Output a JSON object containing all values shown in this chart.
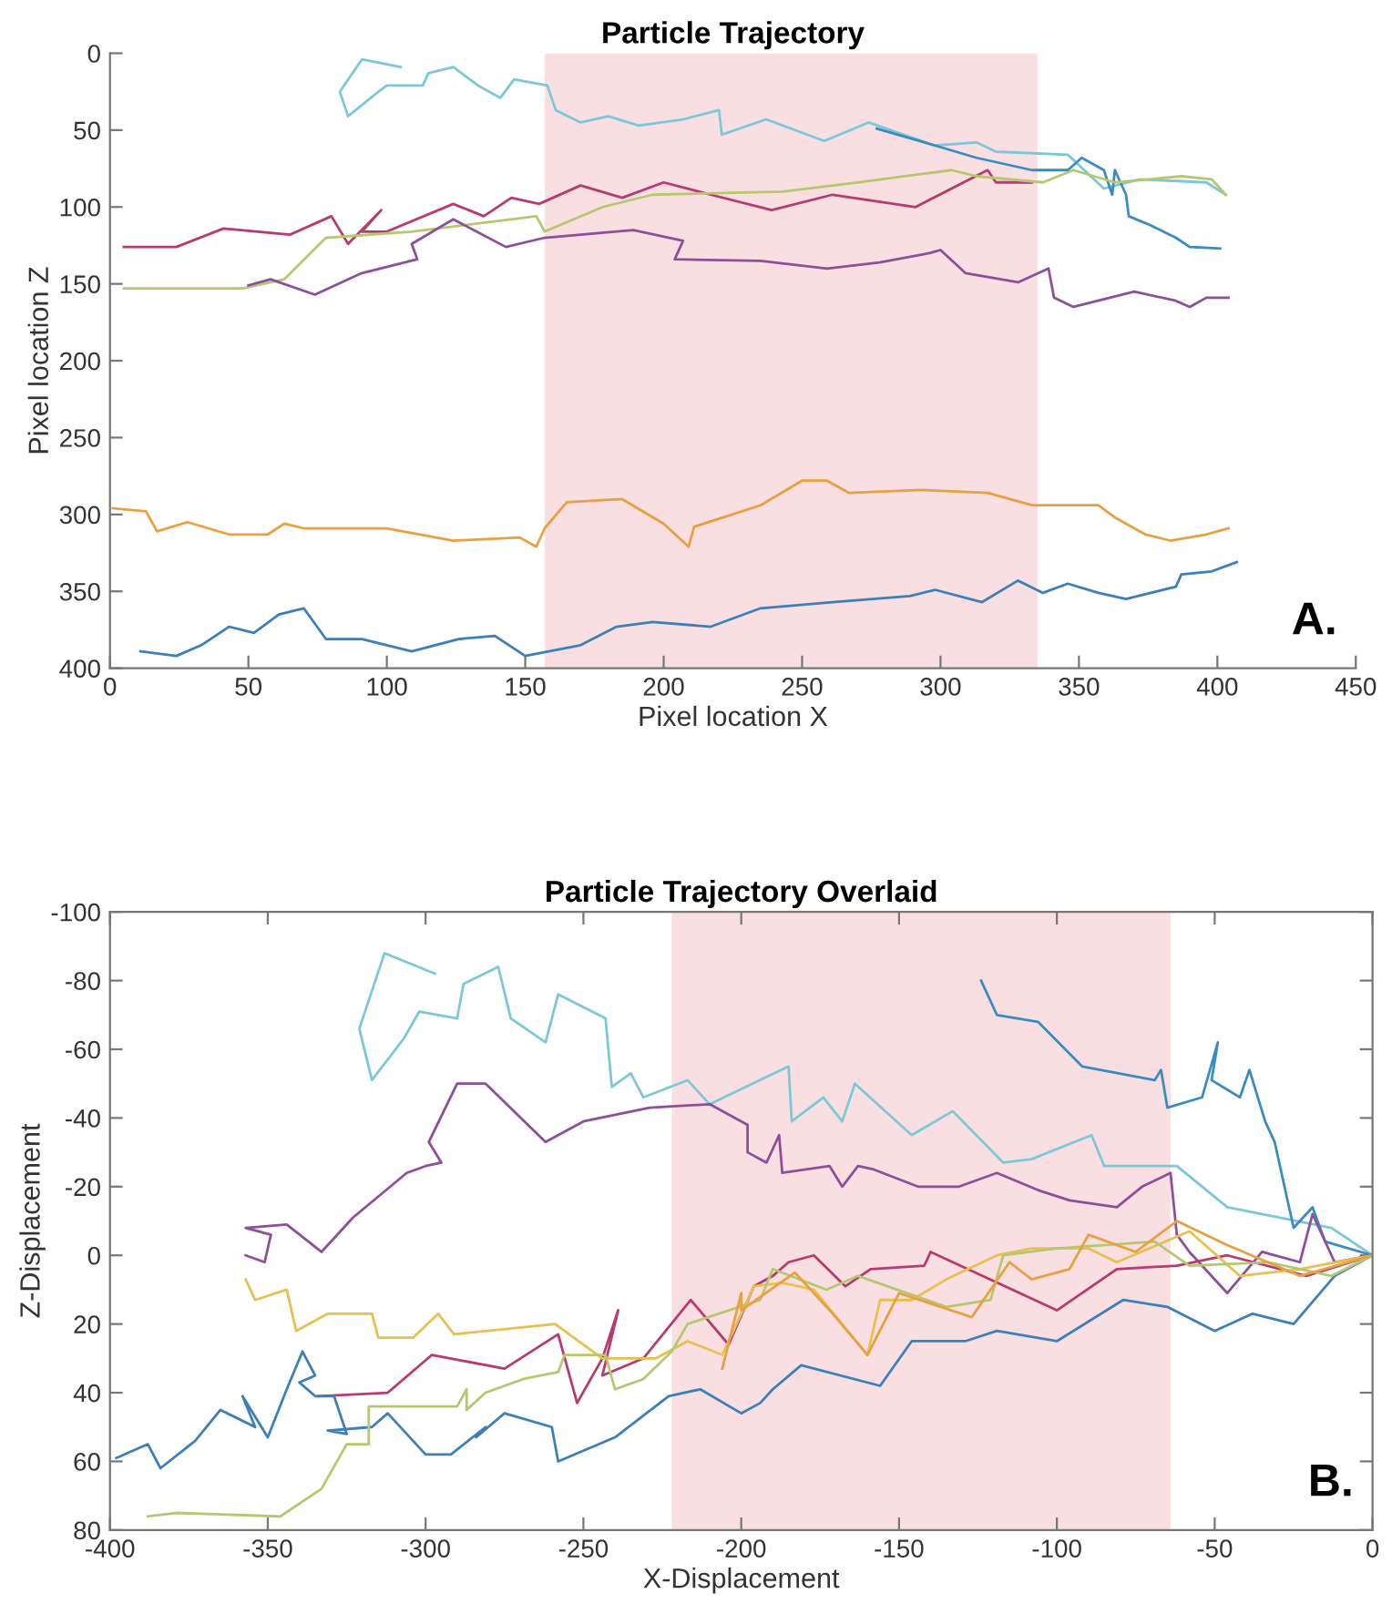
{
  "chart_data": [
    {
      "type": "line",
      "title": "Particle Trajectory",
      "xlabel": "Pixel location X",
      "ylabel": "Pixel location Z",
      "xlim": [
        0,
        450
      ],
      "ylim": [
        400,
        0
      ],
      "xticks": [
        0,
        50,
        100,
        150,
        200,
        250,
        300,
        350,
        400,
        450
      ],
      "yticks": [
        0,
        50,
        100,
        150,
        200,
        250,
        300,
        350,
        400
      ],
      "grid": false,
      "bands": [
        {
          "axis": "x",
          "from": 157,
          "to": 335,
          "color": "#f9dfe1"
        }
      ],
      "annotations": [
        "A."
      ],
      "series": [
        {
          "color": "#7cc8d8",
          "x": [
            105,
            91,
            83,
            86,
            97,
            100,
            113,
            115,
            124,
            133,
            141,
            146,
            158,
            161,
            170,
            180,
            191,
            207,
            220,
            221,
            237,
            258,
            274,
            298,
            313,
            320,
            346,
            359,
            372,
            396,
            403
          ],
          "values": [
            9,
            4,
            25,
            41,
            25,
            21,
            21,
            13,
            9,
            21,
            29,
            17,
            21,
            37,
            45,
            41,
            47,
            43,
            37,
            53,
            43,
            57,
            45,
            60,
            58,
            64,
            66,
            88,
            82,
            84,
            92
          ]
        },
        {
          "color": "#3a8cc0",
          "x": [
            277,
            298,
            313,
            333,
            346,
            351,
            359,
            362,
            363,
            367,
            368,
            376,
            385,
            390,
            401
          ],
          "values": [
            49,
            60,
            68,
            76,
            76,
            68,
            76,
            92,
            76,
            92,
            106,
            112,
            120,
            126,
            127
          ]
        },
        {
          "color": "#b83a70",
          "x": [
            5,
            24,
            41,
            65,
            80,
            86,
            98,
            91,
            100,
            124,
            135,
            145,
            155,
            170,
            185,
            200,
            217,
            239,
            261,
            291,
            317,
            320,
            333
          ],
          "values": [
            126,
            126,
            114,
            118,
            106,
            124,
            102,
            116,
            116,
            98,
            106,
            94,
            98,
            86,
            94,
            84,
            92,
            102,
            92,
            100,
            76,
            84,
            84
          ]
        },
        {
          "color": "#b5c870",
          "x": [
            5,
            48,
            63,
            78,
            109,
            154,
            157,
            178,
            196,
            243,
            270,
            304,
            313,
            337,
            348,
            363,
            387,
            398,
            403
          ],
          "values": [
            153,
            153,
            147,
            120,
            116,
            106,
            116,
            100,
            92,
            90,
            84,
            76,
            80,
            84,
            76,
            84,
            80,
            82,
            92
          ]
        },
        {
          "color": "#8e4f9a",
          "x": [
            50,
            58,
            74,
            91,
            111,
            109,
            124,
            143,
            157,
            189,
            207,
            204,
            235,
            259,
            278,
            296,
            300,
            309,
            328,
            339,
            341,
            348,
            370,
            385,
            390,
            396,
            404
          ],
          "values": [
            151,
            147,
            157,
            143,
            134,
            124,
            108,
            126,
            120,
            115,
            122,
            134,
            135,
            140,
            136,
            130,
            128,
            143,
            149,
            140,
            159,
            165,
            155,
            161,
            165,
            159,
            159
          ]
        },
        {
          "color": "#e8a040",
          "x": [
            1,
            13,
            17,
            28,
            43,
            57,
            63,
            70,
            100,
            124,
            148,
            154,
            157,
            165,
            185,
            200,
            209,
            211,
            235,
            250,
            259,
            267,
            293,
            317,
            333,
            357,
            363,
            374,
            383,
            396,
            404
          ],
          "values": [
            296,
            298,
            311,
            305,
            313,
            313,
            306,
            309,
            309,
            317,
            315,
            321,
            309,
            292,
            290,
            306,
            321,
            308,
            294,
            278,
            278,
            286,
            284,
            286,
            294,
            294,
            302,
            313,
            317,
            313,
            309
          ]
        },
        {
          "color": "#3d7fb8",
          "x": [
            11,
            24,
            33,
            43,
            52,
            61,
            70,
            78,
            91,
            109,
            126,
            139,
            150,
            170,
            183,
            196,
            217,
            235,
            261,
            289,
            298,
            315,
            328,
            337,
            346,
            357,
            367,
            385,
            387,
            398,
            407
          ],
          "values": [
            389,
            392,
            385,
            373,
            377,
            365,
            361,
            381,
            381,
            389,
            381,
            379,
            392,
            385,
            373,
            370,
            373,
            361,
            357,
            353,
            349,
            357,
            343,
            351,
            345,
            351,
            355,
            347,
            339,
            337,
            331
          ]
        }
      ]
    },
    {
      "type": "line",
      "title": "Particle Trajectory Overlaid",
      "xlabel": "X-Displacement",
      "ylabel": "Z-Displacement",
      "xlim": [
        -400,
        0
      ],
      "ylim": [
        80,
        -100
      ],
      "xticks": [
        -400,
        -350,
        -300,
        -250,
        -200,
        -150,
        -100,
        -50,
        0
      ],
      "yticks": [
        -100,
        -80,
        -60,
        -40,
        -20,
        0,
        20,
        40,
        60,
        80
      ],
      "grid": false,
      "bands": [
        {
          "axis": "x",
          "from": -222,
          "to": -64,
          "color": "#f9dfe1"
        }
      ],
      "annotations": [
        "B."
      ],
      "series": [
        {
          "color": "#7cc8d8",
          "x": [
            -297,
            -313,
            -321,
            -317,
            -307,
            -302,
            -290,
            -288,
            -277,
            -273,
            -262,
            -258,
            -243,
            -241,
            -235,
            -231,
            -217,
            -210,
            -185,
            -184,
            -174,
            -168,
            -164,
            -146,
            -133,
            -117,
            -108,
            -89,
            -85,
            -62,
            -46,
            -13,
            0
          ],
          "values": [
            -82,
            -88,
            -66,
            -51,
            -63,
            -71,
            -69,
            -79,
            -84,
            -69,
            -62,
            -76,
            -69,
            -49,
            -53,
            -46,
            -51,
            -44,
            -55,
            -39,
            -46,
            -39,
            -50,
            -35,
            -42,
            -27,
            -28,
            -35,
            -26,
            -26,
            -14,
            -8,
            0
          ]
        },
        {
          "color": "#3a8cc0",
          "x": [
            -124,
            -119,
            -106,
            -92,
            -69,
            -67,
            -65,
            -54,
            -49,
            -51,
            -42,
            -39,
            -34,
            -31,
            -25,
            -19,
            -15,
            0
          ],
          "values": [
            -80,
            -70,
            -68,
            -55,
            -51,
            -54,
            -43,
            -46,
            -62,
            -51,
            -46,
            -54,
            -39,
            -33,
            -8,
            -14,
            -4,
            0
          ]
        },
        {
          "color": "#8e4f9a",
          "x": [
            -357,
            -351,
            -349,
            -357,
            -344,
            -333,
            -323,
            -306,
            -300,
            -295,
            -299,
            -290,
            -281,
            -262,
            -250,
            -229,
            -210,
            -198,
            -198,
            -192,
            -188,
            -187,
            -172,
            -168,
            -163,
            -158,
            -144,
            -131,
            -119,
            -106,
            -96,
            -81,
            -73,
            -64,
            -62,
            -58,
            -46,
            -35,
            -23,
            -19,
            -12,
            0
          ],
          "values": [
            0,
            2,
            -6,
            -8,
            -9,
            -1,
            -11,
            -24,
            -26,
            -27,
            -33,
            -50,
            -50,
            -33,
            -39,
            -43,
            -44,
            -38,
            -30,
            -27,
            -35,
            -24,
            -26,
            -20,
            -26,
            -25,
            -20,
            -20,
            -24,
            -19,
            -16,
            -14,
            -20,
            -24,
            -6,
            -1,
            11,
            -1,
            2,
            -12,
            2,
            0
          ]
        },
        {
          "color": "#b83a70",
          "x": [
            -334,
            -312,
            -298,
            -275,
            -258,
            -252,
            -244,
            -239,
            -244,
            -231,
            -216,
            -204,
            -196,
            -190,
            -185,
            -177,
            -167,
            -159,
            -142,
            -140,
            -100,
            -81,
            -62,
            -46,
            -21,
            0
          ],
          "values": [
            41,
            40,
            29,
            33,
            23,
            43,
            30,
            16,
            35,
            30,
            13,
            26,
            9,
            6,
            2,
            0,
            9,
            4,
            3,
            -1,
            16,
            4,
            3,
            0,
            6,
            0
          ]
        },
        {
          "color": "#e8c050",
          "x": [
            -357,
            -354,
            -344,
            -341,
            -331,
            -317,
            -315,
            -304,
            -296,
            -291,
            -259,
            -244,
            -227,
            -217,
            -206,
            -196,
            -187,
            -177,
            -160,
            -156,
            -146,
            -135,
            -119,
            -108,
            -90,
            -81,
            -58,
            -42,
            -23,
            0
          ],
          "values": [
            7,
            13,
            10,
            22,
            17,
            17,
            24,
            24,
            17,
            23,
            20,
            30,
            30,
            25,
            29,
            9,
            8,
            10,
            29,
            13,
            13,
            7,
            0,
            -2,
            -2,
            2,
            -7,
            6,
            4,
            0
          ]
        },
        {
          "color": "#3d7fb8",
          "x": [
            -398,
            -388,
            -384,
            -373,
            -365,
            -354,
            -358,
            -350,
            -344,
            -339,
            -335,
            -340,
            -335,
            -329,
            -325,
            -331,
            -317,
            -312,
            -300,
            -292,
            -281,
            -284,
            -275,
            -260,
            -258,
            -240,
            -223,
            -213,
            -200,
            -194,
            -190,
            -181,
            -156,
            -146,
            -129,
            -119,
            -100,
            -79,
            -65,
            -50,
            -38,
            -25,
            -12,
            0
          ],
          "values": [
            59,
            55,
            62,
            54,
            45,
            50,
            41,
            53,
            39,
            28,
            35,
            37,
            41,
            41,
            52,
            51,
            50,
            46,
            58,
            58,
            50,
            53,
            46,
            50,
            60,
            53,
            41,
            39,
            46,
            43,
            39,
            32,
            38,
            25,
            25,
            22,
            25,
            13,
            15,
            22,
            17,
            20,
            6,
            0
          ]
        },
        {
          "color": "#b5c870",
          "x": [
            -388,
            -379,
            -346,
            -333,
            -325,
            -318,
            -318,
            -290,
            -287,
            -287,
            -281,
            -269,
            -258,
            -256,
            -243,
            -240,
            -231,
            -222,
            -217,
            -194,
            -190,
            -173,
            -163,
            -135,
            -121,
            -117,
            -100,
            -69,
            -58,
            -33,
            -13,
            0
          ],
          "values": [
            76,
            75,
            76,
            68,
            55,
            55,
            44,
            44,
            39,
            45,
            40,
            36,
            34,
            29,
            29,
            39,
            36,
            28,
            20,
            13,
            4,
            10,
            6,
            15,
            13,
            0,
            -2,
            -4,
            3,
            2,
            6,
            0
          ]
        },
        {
          "color": "#e8a040",
          "x": [
            -206,
            -200,
            -200,
            -183,
            -171,
            -160,
            -150,
            -127,
            -115,
            -108,
            -96,
            -90,
            -75,
            -62,
            -46,
            -23,
            0
          ],
          "values": [
            33,
            11,
            16,
            5,
            17,
            29,
            11,
            18,
            2,
            7,
            4,
            -6,
            -1,
            -10,
            -3,
            6,
            0
          ]
        }
      ]
    }
  ]
}
